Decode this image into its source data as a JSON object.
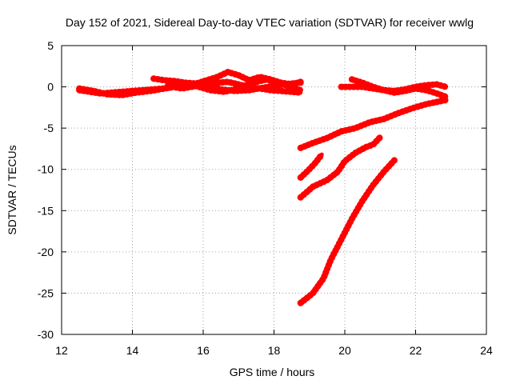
{
  "chart_data": {
    "type": "line",
    "title": "Day 152 of 2021, Sidereal Day-to-day VTEC variation (SDTVAR) for receiver wwlg",
    "xlabel": "GPS time / hours",
    "ylabel": "SDTVAR / TECUs",
    "xlim": [
      12,
      24
    ],
    "ylim": [
      -30,
      5
    ],
    "xticks": [
      12,
      14,
      16,
      18,
      20,
      22,
      24
    ],
    "yticks": [
      5,
      0,
      -5,
      -10,
      -15,
      -20,
      -25,
      -30
    ],
    "grid": true,
    "legend": "none",
    "series_color": "#ff0000",
    "series": [
      {
        "x": [
          12.5,
          12.8,
          13.1,
          13.4,
          13.7,
          14.0,
          14.3,
          14.6,
          14.9,
          15.2,
          15.5,
          15.8,
          16.1,
          16.4,
          16.7,
          17.0,
          17.3,
          17.6,
          17.9,
          18.2,
          18.5,
          18.75
        ],
        "y": [
          -0.4,
          -0.6,
          -0.8,
          -0.7,
          -0.6,
          -0.5,
          -0.4,
          -0.3,
          -0.2,
          0.0,
          0.2,
          0.3,
          0.4,
          0.5,
          0.6,
          0.3,
          0.0,
          -0.2,
          -0.4,
          -0.5,
          -0.6,
          -0.7
        ]
      },
      {
        "x": [
          12.5,
          12.9,
          13.3,
          13.7,
          14.1,
          14.5,
          14.9,
          15.3,
          15.7,
          16.1,
          16.5,
          16.9,
          17.3,
          17.7,
          18.1,
          18.5,
          18.75
        ],
        "y": [
          -0.2,
          -0.5,
          -0.9,
          -1.0,
          -0.7,
          -0.5,
          -0.2,
          0.1,
          0.3,
          0.2,
          -0.3,
          -0.5,
          -0.4,
          -0.1,
          0.2,
          0.4,
          0.5
        ]
      },
      {
        "x": [
          14.6,
          14.9,
          15.2,
          15.5,
          15.8,
          16.1,
          16.4,
          16.7,
          17.0,
          17.3,
          17.6,
          17.9,
          18.2,
          18.5,
          18.75
        ],
        "y": [
          1.0,
          0.8,
          0.7,
          0.5,
          0.4,
          0.8,
          1.2,
          1.8,
          1.4,
          0.8,
          1.2,
          0.9,
          0.5,
          0.3,
          0.6
        ]
      },
      {
        "x": [
          15.0,
          15.4,
          15.8,
          16.2,
          16.6,
          17.0,
          17.4,
          17.8,
          18.2,
          18.6,
          18.75
        ],
        "y": [
          0.1,
          -0.2,
          0.1,
          -0.4,
          -0.6,
          -0.2,
          0.5,
          0.9,
          0.4,
          -0.2,
          -0.4
        ]
      },
      {
        "x": [
          19.9,
          20.2,
          20.5,
          20.8,
          21.1,
          21.4,
          21.7,
          22.0,
          22.3,
          22.6,
          22.85
        ],
        "y": [
          0.0,
          0.0,
          0.0,
          -0.2,
          -0.4,
          -0.5,
          -0.3,
          0.0,
          0.2,
          0.3,
          0.0
        ]
      },
      {
        "x": [
          20.2,
          20.5,
          20.8,
          21.1,
          21.4,
          21.7,
          22.0,
          22.3,
          22.6,
          22.85
        ],
        "y": [
          0.9,
          0.5,
          0.0,
          -0.4,
          -0.7,
          -0.5,
          -0.2,
          -0.4,
          -0.8,
          -1.2
        ]
      },
      {
        "x": [
          18.75,
          19.1,
          19.5,
          19.9,
          20.3,
          20.7,
          21.1,
          21.5,
          21.9,
          22.3,
          22.85
        ],
        "y": [
          -7.4,
          -6.8,
          -6.2,
          -5.4,
          -5.0,
          -4.3,
          -3.9,
          -3.2,
          -2.6,
          -2.1,
          -1.6
        ]
      },
      {
        "x": [
          18.75,
          18.95,
          19.15,
          19.35
        ],
        "y": [
          -11.0,
          -10.2,
          -9.3,
          -8.2
        ]
      },
      {
        "x": [
          18.75,
          19.1,
          19.5,
          19.8,
          20.0,
          20.3,
          20.6,
          20.8,
          21.0
        ],
        "y": [
          -13.4,
          -12.1,
          -11.3,
          -10.3,
          -9.0,
          -8.0,
          -7.3,
          -7.0,
          -6.1
        ]
      },
      {
        "x": [
          18.75,
          19.1,
          19.4,
          19.6,
          19.9,
          20.2,
          20.5,
          20.8,
          21.1,
          21.4
        ],
        "y": [
          -26.2,
          -25.0,
          -23.2,
          -21.0,
          -18.5,
          -16.0,
          -13.8,
          -11.9,
          -10.3,
          -8.9
        ]
      }
    ]
  }
}
